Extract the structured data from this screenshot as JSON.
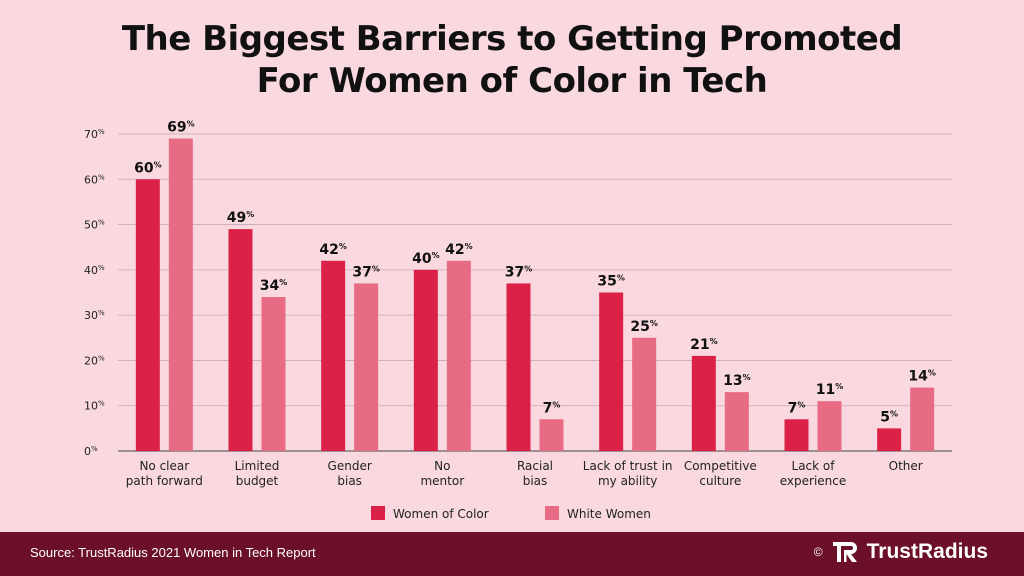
{
  "title_line1": "The Biggest Barriers to Getting Promoted",
  "title_line2": "For Women of Color in Tech",
  "colors": {
    "women_of_color": "#dc2148",
    "white_women": "#e86b84",
    "background": "#f9d9df",
    "footer": "#6b1028"
  },
  "footer": {
    "source": "Source: TrustRadius 2021 Women in Tech Report",
    "copyright": "©",
    "brand": "TrustRadius"
  },
  "chart_data": {
    "type": "bar",
    "categories": [
      [
        "No clear",
        "path forward"
      ],
      [
        "Limited",
        "budget"
      ],
      [
        "Gender",
        "bias"
      ],
      [
        "No",
        "mentor"
      ],
      [
        "Racial",
        "bias"
      ],
      [
        "Lack of trust in",
        "my ability"
      ],
      [
        "Competitive",
        "culture"
      ],
      [
        "Lack of",
        "experience"
      ],
      [
        "Other"
      ]
    ],
    "series": [
      {
        "name": "Women of Color",
        "values": [
          60,
          49,
          42,
          40,
          37,
          35,
          21,
          7,
          5
        ]
      },
      {
        "name": "White Women",
        "values": [
          69,
          34,
          37,
          42,
          7,
          25,
          13,
          11,
          14
        ]
      }
    ],
    "ylim": [
      0,
      70
    ],
    "yticks": [
      0,
      10,
      20,
      30,
      40,
      50,
      60,
      70
    ],
    "unit": "%",
    "grid": true,
    "legend_position": "bottom"
  }
}
